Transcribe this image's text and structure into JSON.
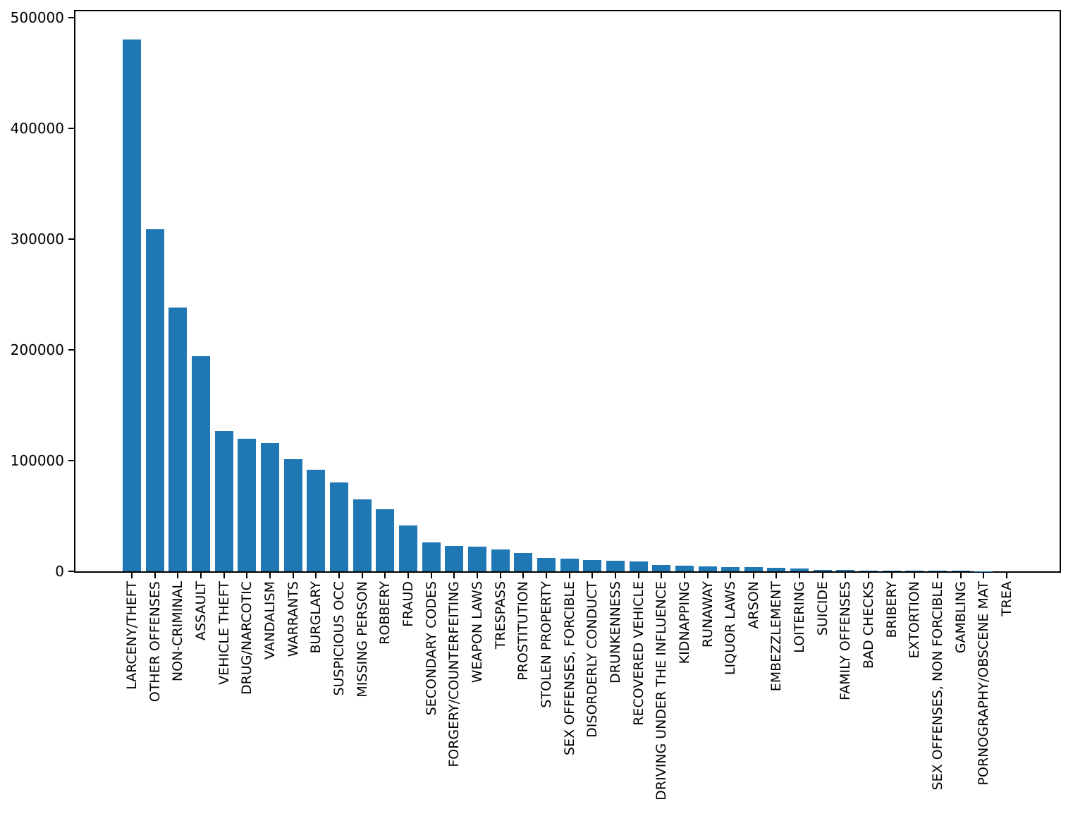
{
  "chart_data": {
    "type": "bar",
    "title": "",
    "xlabel": "",
    "ylabel": "",
    "grid": false,
    "legend": "none",
    "bar_color": "#1f77b4",
    "axis_color": "#000000",
    "background_color": "#ffffff",
    "ylim": [
      0,
      506000
    ],
    "yticks": [
      0,
      100000,
      200000,
      300000,
      400000,
      500000
    ],
    "ytick_labels": [
      "0",
      "100000",
      "200000",
      "300000",
      "400000",
      "500000"
    ],
    "categories": [
      "LARCENY/THEFT",
      "OTHER OFFENSES",
      "NON-CRIMINAL",
      "ASSAULT",
      "VEHICLE THEFT",
      "DRUG/NARCOTIC",
      "VANDALISM",
      "WARRANTS",
      "BURGLARY",
      "SUSPICIOUS OCC",
      "MISSING PERSON",
      "ROBBERY",
      "FRAUD",
      "SECONDARY CODES",
      "FORGERY/COUNTERFEITING",
      "WEAPON LAWS",
      "TRESPASS",
      "PROSTITUTION",
      "STOLEN PROPERTY",
      "SEX OFFENSES, FORCIBLE",
      "DISORDERLY CONDUCT",
      "DRUNKENNESS",
      "RECOVERED VEHICLE",
      "DRIVING UNDER THE INFLUENCE",
      "KIDNAPPING",
      "RUNAWAY",
      "LIQUOR LAWS",
      "ARSON",
      "EMBEZZLEMENT",
      "LOITERING",
      "SUICIDE",
      "FAMILY OFFENSES",
      "BAD CHECKS",
      "BRIBERY",
      "EXTORTION",
      "SEX OFFENSES, NON FORCIBLE",
      "GAMBLING",
      "PORNOGRAPHY/OBSCENE MAT",
      "TREA"
    ],
    "values": [
      480448,
      309358,
      238323,
      194694,
      126602,
      119628,
      116059,
      101379,
      91543,
      80444,
      64961,
      55867,
      41542,
      25831,
      23050,
      22234,
      19449,
      16701,
      11891,
      11742,
      9988,
      9781,
      8716,
      5672,
      5346,
      4440,
      4083,
      3931,
      2988,
      2430,
      1292,
      1183,
      925,
      813,
      741,
      431,
      348,
      57,
      14
    ]
  }
}
